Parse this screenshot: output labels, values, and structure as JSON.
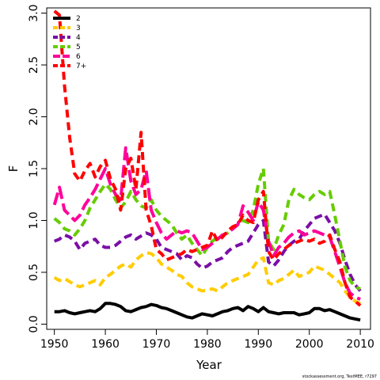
{
  "chart_data": {
    "type": "line",
    "xlabel": "Year",
    "ylabel": "F",
    "xlim": [
      1948.5,
      2012
    ],
    "ylim": [
      -0.05,
      3.05
    ],
    "x_ticks": [
      1950,
      1960,
      1970,
      1980,
      1990,
      2000,
      2010
    ],
    "y_ticks": [
      0.0,
      0.5,
      1.0,
      1.5,
      2.0,
      2.5,
      3.0
    ],
    "y_tick_labels": [
      "0.0",
      "0.5",
      "1.0",
      "1.5",
      "2.0",
      "2.5",
      "3.0"
    ],
    "grid": false,
    "legend_position": "top-left",
    "credit": "stockassessment.org, TestMEE, r7297",
    "x": [
      1950,
      1951,
      1952,
      1953,
      1954,
      1955,
      1956,
      1957,
      1958,
      1959,
      1960,
      1961,
      1962,
      1963,
      1964,
      1965,
      1966,
      1967,
      1968,
      1969,
      1970,
      1971,
      1972,
      1973,
      1974,
      1975,
      1976,
      1977,
      1978,
      1979,
      1980,
      1981,
      1982,
      1983,
      1984,
      1985,
      1986,
      1987,
      1988,
      1989,
      1990,
      1991,
      1992,
      1993,
      1994,
      1995,
      1996,
      1997,
      1998,
      1999,
      2000,
      2001,
      2002,
      2003,
      2004,
      2005,
      2006,
      2007,
      2008,
      2009,
      2010
    ],
    "series": [
      {
        "name": "2",
        "color": "#000000",
        "dash": "solid",
        "values": [
          0.12,
          0.12,
          0.13,
          0.11,
          0.1,
          0.11,
          0.12,
          0.13,
          0.12,
          0.15,
          0.2,
          0.2,
          0.19,
          0.17,
          0.13,
          0.12,
          0.14,
          0.16,
          0.17,
          0.19,
          0.18,
          0.16,
          0.15,
          0.13,
          0.11,
          0.09,
          0.07,
          0.06,
          0.08,
          0.1,
          0.09,
          0.08,
          0.1,
          0.12,
          0.13,
          0.15,
          0.16,
          0.13,
          0.17,
          0.15,
          0.12,
          0.16,
          0.12,
          0.11,
          0.1,
          0.11,
          0.11,
          0.11,
          0.09,
          0.1,
          0.11,
          0.15,
          0.15,
          0.13,
          0.14,
          0.12,
          0.1,
          0.08,
          0.06,
          0.05,
          0.04
        ]
      },
      {
        "name": "3",
        "color": "#ffcc00",
        "dash": "dash",
        "values": [
          0.45,
          0.42,
          0.44,
          0.41,
          0.38,
          0.36,
          0.38,
          0.4,
          0.42,
          0.38,
          0.45,
          0.48,
          0.52,
          0.56,
          0.58,
          0.55,
          0.62,
          0.66,
          0.69,
          0.68,
          0.64,
          0.58,
          0.55,
          0.52,
          0.48,
          0.46,
          0.4,
          0.36,
          0.34,
          0.32,
          0.33,
          0.34,
          0.32,
          0.36,
          0.4,
          0.42,
          0.44,
          0.46,
          0.48,
          0.55,
          0.62,
          0.64,
          0.4,
          0.38,
          0.42,
          0.44,
          0.48,
          0.52,
          0.46,
          0.48,
          0.5,
          0.56,
          0.54,
          0.52,
          0.48,
          0.44,
          0.4,
          0.32,
          0.26,
          0.22,
          0.2
        ]
      },
      {
        "name": "4",
        "color": "#7b0ea6",
        "dash": "dash",
        "values": [
          0.8,
          0.82,
          0.86,
          0.84,
          0.8,
          0.72,
          0.78,
          0.8,
          0.82,
          0.76,
          0.74,
          0.74,
          0.76,
          0.8,
          0.84,
          0.86,
          0.82,
          0.85,
          0.88,
          0.86,
          0.82,
          0.74,
          0.72,
          0.7,
          0.68,
          0.62,
          0.66,
          0.64,
          0.58,
          0.54,
          0.56,
          0.6,
          0.62,
          0.64,
          0.7,
          0.74,
          0.76,
          0.78,
          0.8,
          0.88,
          0.96,
          1.0,
          0.6,
          0.56,
          0.62,
          0.7,
          0.76,
          0.8,
          0.82,
          0.9,
          0.96,
          1.02,
          1.04,
          1.06,
          0.98,
          0.9,
          0.78,
          0.62,
          0.48,
          0.38,
          0.32
        ]
      },
      {
        "name": "5",
        "color": "#66cc00",
        "dash": "dash",
        "values": [
          1.02,
          0.98,
          0.92,
          0.9,
          0.86,
          0.92,
          1.0,
          1.12,
          1.2,
          1.28,
          1.35,
          1.3,
          1.2,
          1.12,
          1.18,
          1.28,
          1.2,
          1.14,
          1.12,
          1.2,
          1.1,
          1.04,
          1.0,
          0.96,
          0.88,
          0.82,
          0.86,
          0.78,
          0.72,
          0.66,
          0.74,
          0.8,
          0.84,
          0.86,
          0.88,
          0.92,
          0.96,
          1.0,
          0.98,
          1.1,
          1.35,
          1.5,
          0.8,
          0.72,
          0.86,
          0.96,
          1.2,
          1.3,
          1.25,
          1.22,
          1.2,
          1.25,
          1.28,
          1.25,
          1.28,
          1.05,
          0.8,
          0.55,
          0.42,
          0.36,
          0.34
        ]
      },
      {
        "name": "6",
        "color": "#ff0099",
        "dash": "longdash",
        "values": [
          1.15,
          1.32,
          1.1,
          1.05,
          1.0,
          1.05,
          1.15,
          1.22,
          1.3,
          1.4,
          1.5,
          1.35,
          1.25,
          1.2,
          1.7,
          1.38,
          1.25,
          1.3,
          1.48,
          1.1,
          0.98,
          0.88,
          0.82,
          0.86,
          0.9,
          0.88,
          0.9,
          0.88,
          0.8,
          0.72,
          0.74,
          0.78,
          0.82,
          0.86,
          0.88,
          0.92,
          0.96,
          1.14,
          1.08,
          1.0,
          1.18,
          1.1,
          0.8,
          0.66,
          0.74,
          0.78,
          0.84,
          0.88,
          0.9,
          0.86,
          0.88,
          0.9,
          0.88,
          0.86,
          0.84,
          0.7,
          0.55,
          0.4,
          0.3,
          0.26,
          0.24
        ]
      },
      {
        "name": "7+",
        "color": "#ff0000",
        "dash": "dash",
        "values": [
          3.02,
          2.98,
          2.3,
          1.8,
          1.45,
          1.38,
          1.48,
          1.55,
          1.42,
          1.52,
          1.58,
          1.4,
          1.3,
          1.1,
          1.5,
          1.6,
          1.3,
          1.85,
          1.1,
          0.95,
          0.72,
          0.68,
          0.62,
          0.64,
          0.66,
          0.68,
          0.72,
          0.7,
          0.72,
          0.74,
          0.76,
          0.9,
          0.8,
          0.84,
          0.9,
          0.94,
          0.96,
          1.05,
          1.0,
          0.98,
          1.2,
          1.28,
          0.7,
          0.62,
          0.68,
          0.72,
          0.76,
          0.78,
          0.8,
          0.82,
          0.8,
          0.82,
          0.78,
          0.8,
          0.86,
          0.72,
          0.6,
          0.4,
          0.26,
          0.22,
          0.18
        ]
      }
    ]
  }
}
